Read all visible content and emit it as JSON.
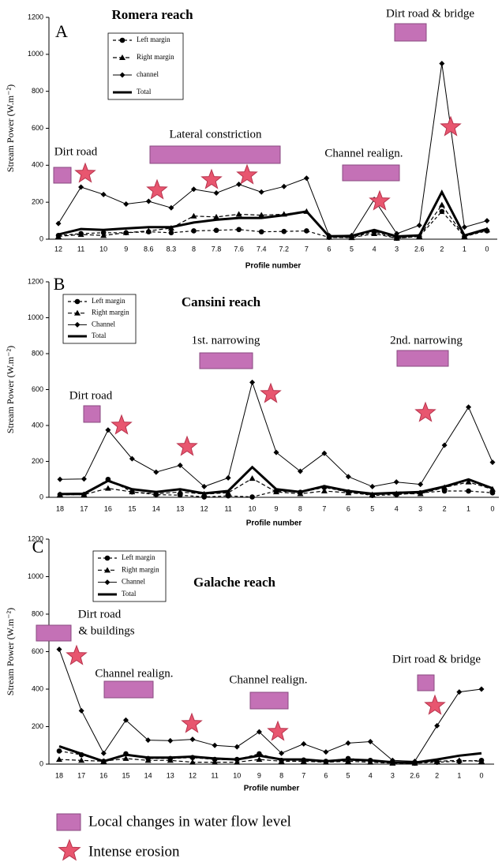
{
  "chart_data": [
    {
      "type": "line",
      "panel": "A",
      "title": "Romera reach",
      "x_label": "Profile number",
      "y_label": "Stream Power (W.m⁻²)",
      "categories": [
        "12",
        "11",
        "10",
        "9",
        "8.6",
        "8.3",
        "8",
        "7.8",
        "7.6",
        "7.4",
        "7.2",
        "7",
        "6",
        "5",
        "4",
        "3",
        "2.6",
        "2",
        "1",
        "0"
      ],
      "ylim": [
        0,
        1200
      ],
      "yticks": [
        0,
        200,
        400,
        600,
        800,
        1000,
        1200
      ],
      "series": [
        {
          "name": "Left margin",
          "color": "#000000",
          "values": [
            20,
            30,
            35,
            35,
            40,
            35,
            45,
            48,
            52,
            40,
            42,
            45,
            10,
            10,
            40,
            5,
            15,
            150,
            15,
            45
          ]
        },
        {
          "name": "Right margin",
          "color": "#000000",
          "values": [
            15,
            25,
            20,
            35,
            45,
            60,
            125,
            120,
            135,
            130,
            135,
            150,
            10,
            8,
            30,
            5,
            15,
            185,
            15,
            50
          ]
        },
        {
          "name": "channel",
          "color": "#000000",
          "values": [
            85,
            282,
            242,
            190,
            205,
            170,
            270,
            250,
            297,
            255,
            285,
            330,
            20,
            20,
            215,
            30,
            75,
            950,
            65,
            100
          ]
        },
        {
          "name": "Total",
          "color": "#000000",
          "values": [
            25,
            55,
            50,
            58,
            65,
            65,
            90,
            105,
            115,
            115,
            130,
            150,
            15,
            18,
            50,
            15,
            20,
            255,
            20,
            55
          ]
        }
      ],
      "annotations": [
        "Dirt road",
        "Lateral constriction",
        "Channel realign.",
        "Dirt road & bridge"
      ]
    },
    {
      "type": "line",
      "panel": "B",
      "title": "Cansini reach",
      "x_label": "Profile number",
      "y_label": "Stream Power (W.m⁻²)",
      "categories": [
        "18",
        "17",
        "16",
        "15",
        "14",
        "13",
        "12",
        "11",
        "10",
        "9",
        "8",
        "7",
        "6",
        "5",
        "4",
        "3",
        "2",
        "1",
        "0"
      ],
      "ylim": [
        0,
        1200
      ],
      "yticks": [
        0,
        200,
        400,
        600,
        800,
        1000,
        1200
      ],
      "series": [
        {
          "name": "Left margin",
          "color": "#000000",
          "values": [
            15,
            15,
            100,
            30,
            15,
            12,
            2,
            8,
            2,
            35,
            28,
            55,
            30,
            10,
            15,
            25,
            35,
            35,
            25
          ]
        },
        {
          "name": "Right margin",
          "color": "#000000",
          "values": [
            15,
            15,
            50,
            30,
            20,
            30,
            18,
            25,
            105,
            30,
            20,
            35,
            25,
            15,
            20,
            20,
            55,
            85,
            45
          ]
        },
        {
          "name": "Channel",
          "color": "#000000",
          "values": [
            100,
            102,
            375,
            215,
            140,
            178,
            60,
            108,
            640,
            250,
            145,
            245,
            115,
            60,
            85,
            72,
            290,
            502,
            195
          ]
        },
        {
          "name": "Total",
          "color": "#000000",
          "values": [
            18,
            20,
            92,
            45,
            30,
            45,
            22,
            35,
            168,
            45,
            30,
            62,
            35,
            20,
            25,
            30,
            60,
            100,
            50
          ]
        }
      ],
      "annotations": [
        "Dirt road",
        "1st. narrowing",
        "2nd. narrowing"
      ]
    },
    {
      "type": "line",
      "panel": "C",
      "title": "Galache reach",
      "x_label": "Profile number",
      "y_label": "Stream Power (W.m⁻²)",
      "categories": [
        "18",
        "17",
        "16",
        "15",
        "14",
        "13",
        "12",
        "11",
        "10",
        "9",
        "8",
        "7",
        "6",
        "5",
        "4",
        "3",
        "2.6",
        "2",
        "1",
        "0"
      ],
      "ylim": [
        0,
        1200
      ],
      "yticks": [
        0,
        200,
        400,
        600,
        800,
        1000,
        1200
      ],
      "series": [
        {
          "name": "Left margin",
          "color": "#000000",
          "values": [
            70,
            50,
            15,
            55,
            30,
            30,
            35,
            25,
            25,
            55,
            20,
            22,
            15,
            30,
            20,
            10,
            5,
            10,
            15,
            20
          ]
        },
        {
          "name": "Right margin",
          "color": "#000000",
          "values": [
            25,
            20,
            15,
            30,
            20,
            20,
            10,
            10,
            10,
            25,
            15,
            15,
            10,
            15,
            10,
            5,
            5,
            15,
            20,
            15
          ]
        },
        {
          "name": "Channel",
          "color": "#000000",
          "values": [
            612,
            285,
            58,
            235,
            128,
            125,
            132,
            100,
            92,
            172,
            58,
            108,
            65,
            112,
            120,
            20,
            15,
            205,
            385,
            400
          ]
        },
        {
          "name": "Total",
          "color": "#000000",
          "values": [
            95,
            55,
            15,
            50,
            35,
            35,
            40,
            30,
            25,
            45,
            25,
            25,
            15,
            25,
            20,
            10,
            8,
            25,
            45,
            58
          ]
        }
      ],
      "annotations": [
        "Dirt road",
        "& buildings",
        "Channel realign.",
        "Channel realign.",
        "Dirt road & bridge"
      ]
    }
  ],
  "figure_legend": {
    "rectangle": "Local changes in water flow level",
    "star": "Intense erosion"
  }
}
